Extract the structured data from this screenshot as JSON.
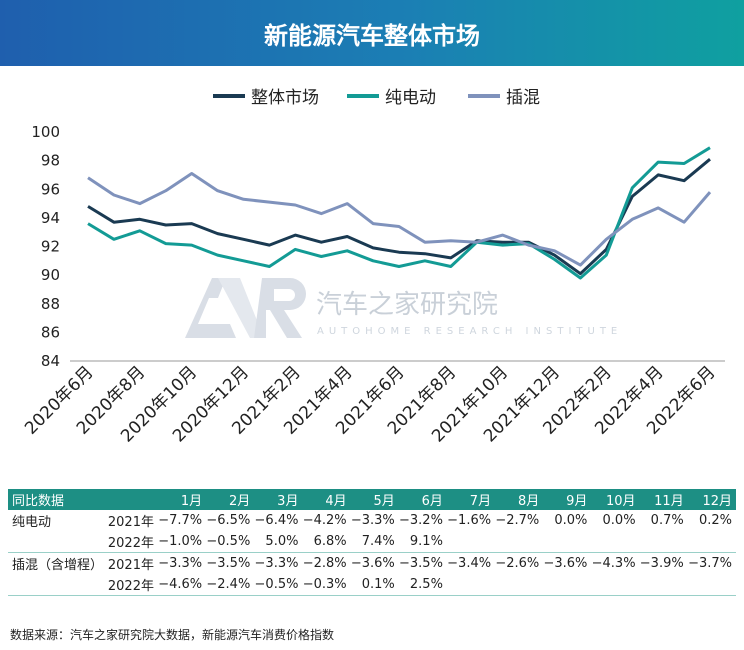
{
  "header": {
    "title": "新能源汽车整体市场"
  },
  "chart_data": {
    "type": "line",
    "title": "新能源汽车整体市场",
    "x": [
      "2020年6月",
      "2020年7月",
      "2020年8月",
      "2020年9月",
      "2020年10月",
      "2020年11月",
      "2020年12月",
      "2021年1月",
      "2021年2月",
      "2021年3月",
      "2021年4月",
      "2021年5月",
      "2021年6月",
      "2021年7月",
      "2021年8月",
      "2021年9月",
      "2021年10月",
      "2021年11月",
      "2021年12月",
      "2022年1月",
      "2022年2月",
      "2022年3月",
      "2022年4月",
      "2022年5月",
      "2022年6月"
    ],
    "x_tick_labels": [
      "2020年6月",
      "2020年8月",
      "2020年10月",
      "2020年12月",
      "2021年2月",
      "2021年4月",
      "2021年6月",
      "2021年8月",
      "2021年10月",
      "2021年12月",
      "2022年2月",
      "2022年4月",
      "2022年6月"
    ],
    "ylim": [
      84,
      100
    ],
    "y_ticks": [
      84,
      86,
      88,
      90,
      92,
      94,
      96,
      98,
      100
    ],
    "legend_position": "top-center",
    "grid": false,
    "series": [
      {
        "name": "整体市场",
        "color": "#1a3a52",
        "values": [
          94.8,
          93.7,
          93.9,
          93.5,
          93.6,
          92.9,
          92.5,
          92.1,
          92.8,
          92.3,
          92.7,
          91.9,
          91.6,
          91.5,
          91.2,
          92.4,
          92.3,
          92.3,
          91.4,
          90.1,
          91.8,
          95.5,
          97.0,
          96.6,
          98.1
        ]
      },
      {
        "name": "纯电动",
        "color": "#139b95",
        "values": [
          93.6,
          92.5,
          93.1,
          92.2,
          92.1,
          91.4,
          91.0,
          90.6,
          91.8,
          91.3,
          91.7,
          91.0,
          90.6,
          91.0,
          90.6,
          92.3,
          92.1,
          92.2,
          91.1,
          89.8,
          91.4,
          96.1,
          97.9,
          97.8,
          98.9
        ]
      },
      {
        "name": "插混",
        "color": "#7f92bc",
        "values": [
          96.8,
          95.6,
          95.0,
          95.9,
          97.1,
          95.9,
          95.3,
          95.1,
          94.9,
          94.3,
          95.0,
          93.6,
          93.4,
          92.3,
          92.4,
          92.3,
          92.8,
          92.1,
          91.7,
          90.7,
          92.5,
          93.9,
          94.7,
          93.7,
          95.8
        ]
      }
    ]
  },
  "watermark": {
    "name": "汽车之家研究院",
    "sub": "AUTOHOME RESEARCH INSTITUTE"
  },
  "table": {
    "header_label": "同比数据",
    "months": [
      "1月",
      "2月",
      "3月",
      "4月",
      "5月",
      "6月",
      "7月",
      "8月",
      "9月",
      "10月",
      "11月",
      "12月"
    ],
    "rows": [
      {
        "group": "纯电动",
        "year": "2021年",
        "values": [
          "−7.7%",
          "−6.5%",
          "−6.4%",
          "−4.2%",
          "−3.3%",
          "−3.2%",
          "−1.6%",
          "−2.7%",
          "0.0%",
          "0.0%",
          "0.7%",
          "0.2%"
        ]
      },
      {
        "group": "",
        "year": "2022年",
        "values": [
          "−1.0%",
          "−0.5%",
          "5.0%",
          "6.8%",
          "7.4%",
          "9.1%",
          "",
          "",
          "",
          "",
          "",
          ""
        ]
      },
      {
        "group": "插混（含增程）",
        "year": "2021年",
        "values": [
          "−3.3%",
          "−3.5%",
          "−3.3%",
          "−2.8%",
          "−3.6%",
          "−3.5%",
          "−3.4%",
          "−2.6%",
          "−3.6%",
          "−4.3%",
          "−3.9%",
          "−3.7%"
        ]
      },
      {
        "group": "",
        "year": "2022年",
        "values": [
          "−4.6%",
          "−2.4%",
          "−0.5%",
          "−0.3%",
          "0.1%",
          "2.5%",
          "",
          "",
          "",
          "",
          "",
          ""
        ]
      }
    ]
  },
  "source": "数据来源：汽车之家研究院大数据，新能源汽车消费价格指数"
}
